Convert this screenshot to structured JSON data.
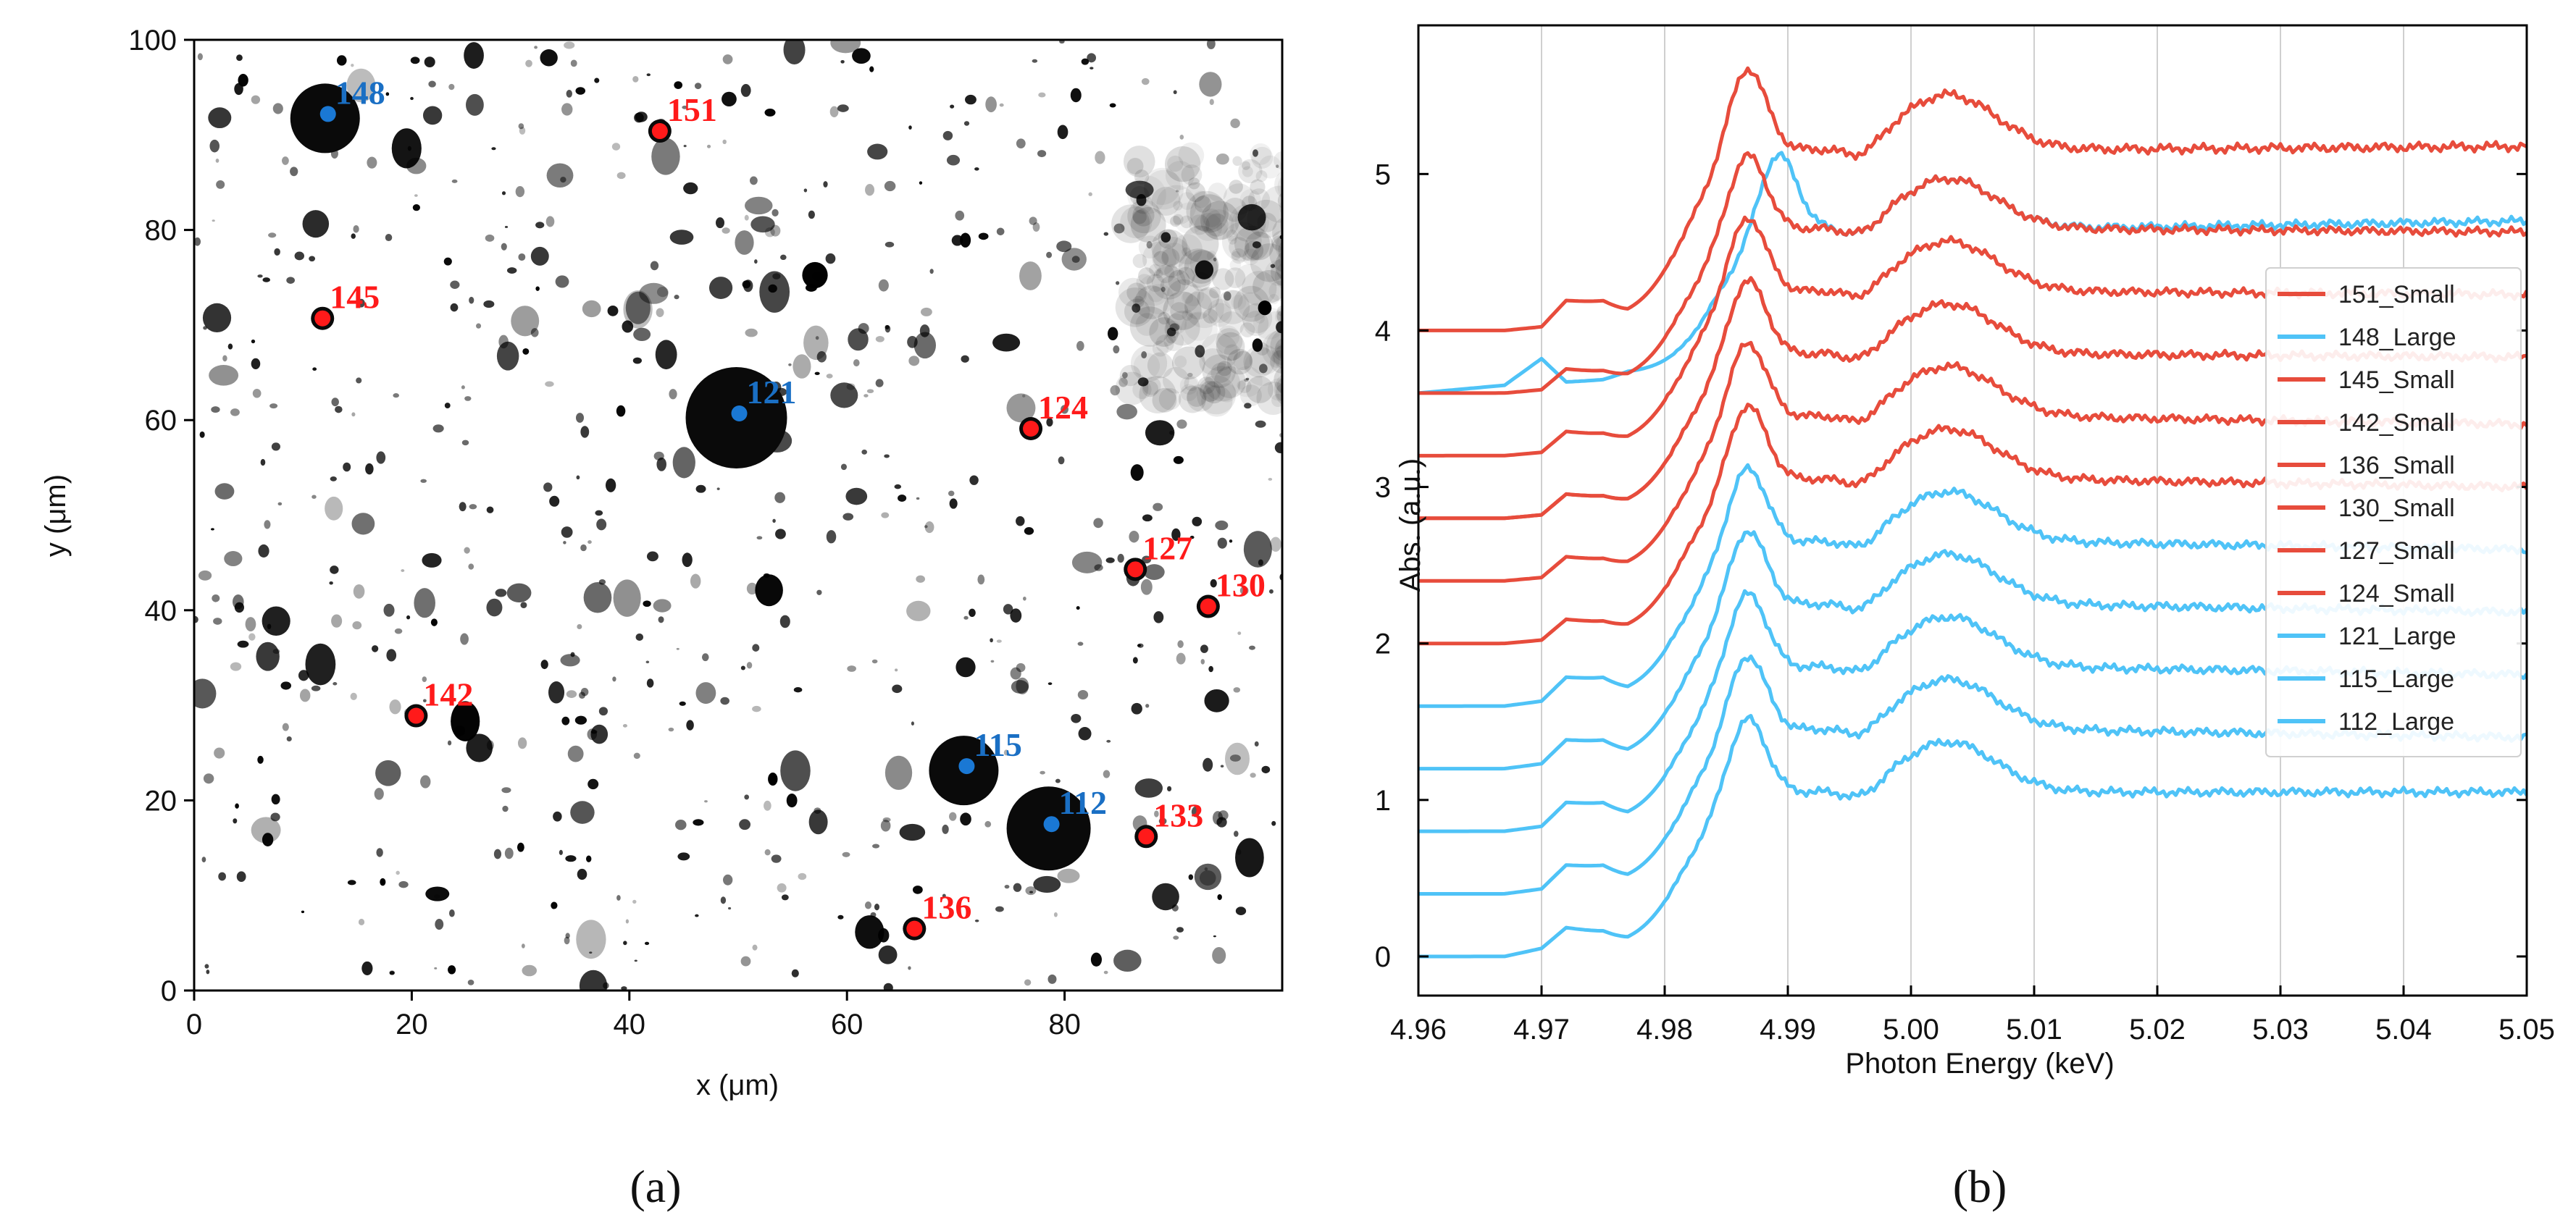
{
  "colors": {
    "small": "#e74c3c",
    "large": "#4fc3f7",
    "small_label": "#ff1a1a",
    "large_label": "#1a6fc4"
  },
  "panel_labels": {
    "a": "(a)",
    "b": "(b)"
  },
  "chart_data": [
    {
      "type": "scatter",
      "title": "",
      "xlabel": "x (μm)",
      "ylabel": "y (μm)",
      "xlim": [
        0,
        100
      ],
      "ylim": [
        0,
        100
      ],
      "x_ticks": [
        "0",
        "20",
        "40",
        "60",
        "80"
      ],
      "y_ticks": [
        "0",
        "20",
        "40",
        "60",
        "80",
        "100"
      ],
      "background": "grayscale microscopy map",
      "points": [
        {
          "label": "148",
          "x": 12.3,
          "y": 92.2,
          "group": "Large"
        },
        {
          "label": "151",
          "x": 42.8,
          "y": 90.4,
          "group": "Small"
        },
        {
          "label": "145",
          "x": 11.8,
          "y": 70.7,
          "group": "Small"
        },
        {
          "label": "121",
          "x": 50.1,
          "y": 60.7,
          "group": "Large"
        },
        {
          "label": "124",
          "x": 76.9,
          "y": 59.1,
          "group": "Small"
        },
        {
          "label": "127",
          "x": 86.5,
          "y": 44.3,
          "group": "Small"
        },
        {
          "label": "130",
          "x": 93.2,
          "y": 40.4,
          "group": "Small"
        },
        {
          "label": "142",
          "x": 20.4,
          "y": 28.9,
          "group": "Small"
        },
        {
          "label": "115",
          "x": 71.0,
          "y": 23.6,
          "group": "Large"
        },
        {
          "label": "112",
          "x": 78.8,
          "y": 17.5,
          "group": "Large"
        },
        {
          "label": "133",
          "x": 87.5,
          "y": 16.2,
          "group": "Small"
        },
        {
          "label": "136",
          "x": 66.2,
          "y": 6.5,
          "group": "Small"
        }
      ]
    },
    {
      "type": "line",
      "title": "",
      "xlabel": "Photon Energy (keV)",
      "ylabel": "Abs. (a.u.)",
      "xlim": [
        4.96,
        5.05
      ],
      "ylim": [
        -0.25,
        5.95
      ],
      "x_ticks": [
        "4.96",
        "4.97",
        "4.98",
        "4.99",
        "5.00",
        "5.01",
        "5.02",
        "5.03",
        "5.04",
        "5.05"
      ],
      "y_ticks": [
        "0",
        "1",
        "2",
        "3",
        "4",
        "5"
      ],
      "grid": "vertical",
      "legend_position": "right",
      "series": [
        {
          "name": "151_Small",
          "group": "Small",
          "offset": 4.0,
          "scale": 1.1,
          "end": 1.02,
          "pre": [
            0,
            0,
            0.02,
            0.17,
            0.15,
            0.05
          ]
        },
        {
          "name": "148_Large",
          "group": "Large",
          "offset": 3.6,
          "scale": 1.0,
          "end": 1.05,
          "pre": [
            0,
            0.05,
            0.22,
            0.07,
            0.08,
            0.12
          ],
          "shifted": true
        },
        {
          "name": "145_Small",
          "group": "Small",
          "offset": 3.6,
          "scale": 1.0,
          "end": 0.98,
          "pre": [
            0,
            0,
            0.02,
            0.15,
            0.12,
            0.05
          ]
        },
        {
          "name": "142_Small",
          "group": "Small",
          "offset": 3.2,
          "scale": 1.0,
          "end": 0.98,
          "pre": [
            0,
            0,
            0.02,
            0.15,
            0.12,
            0.05
          ]
        },
        {
          "name": "136_Small",
          "group": "Small",
          "offset": 2.8,
          "scale": 1.0,
          "end": 0.98,
          "pre": [
            0,
            0,
            0.02,
            0.15,
            0.12,
            0.05
          ]
        },
        {
          "name": "130_Small",
          "group": "Small",
          "offset": 2.8,
          "scale": 1.0,
          "end": 0.98,
          "pre": [
            0,
            0,
            0.02,
            0.15,
            0.12,
            0.05
          ]
        },
        {
          "name": "127_Small",
          "group": "Small",
          "offset": 2.4,
          "scale": 1.0,
          "end": 0.95,
          "pre": [
            0,
            0,
            0.02,
            0.15,
            0.12,
            0.05
          ]
        },
        {
          "name": "124_Small",
          "group": "Small",
          "offset": 2.0,
          "scale": 1.0,
          "end": 0.95,
          "pre": [
            0,
            0,
            0.02,
            0.15,
            0.12,
            0.05
          ]
        },
        {
          "name": "121_Large",
          "group": "Large",
          "offset": 1.6,
          "scale": 1.0,
          "end": 0.95,
          "pre": [
            0,
            0,
            0.03,
            0.18,
            0.16,
            0.05
          ]
        },
        {
          "name": "115_Large",
          "group": "Large",
          "offset": 1.2,
          "scale": 1.0,
          "end": 0.95,
          "pre": [
            0,
            0,
            0.03,
            0.18,
            0.16,
            0.05
          ]
        },
        {
          "name": "112_Large",
          "group": "Large",
          "offset": 0.8,
          "scale": 1.0,
          "end": 0.95,
          "pre": [
            0,
            0,
            0.03,
            0.18,
            0.16,
            0.05
          ]
        },
        {
          "name": "",
          "group": "Large",
          "offset": 0.4,
          "scale": 1.0,
          "end": 0.95,
          "pre": [
            0,
            0,
            0.03,
            0.18,
            0.16,
            0.05
          ]
        },
        {
          "name": "",
          "group": "Large",
          "offset": 0.0,
          "scale": 1.0,
          "end": 1.0,
          "pre": [
            0,
            0,
            0.05,
            0.18,
            0.14,
            0.05
          ]
        }
      ]
    }
  ]
}
